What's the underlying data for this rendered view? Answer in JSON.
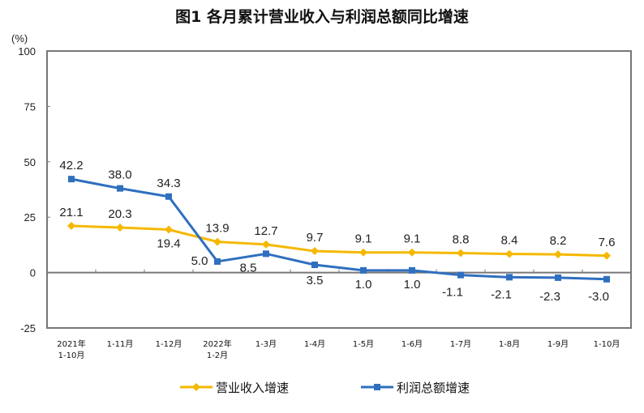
{
  "chart_data": {
    "type": "line",
    "title": "图1  各月累计营业收入与利润总额同比增速",
    "ylabel": "(%)",
    "ylim": [
      -25,
      100
    ],
    "yticks": [
      "100",
      "75",
      "50",
      "25",
      "0",
      "-25"
    ],
    "grid": false,
    "legend_position": "bottom",
    "categories": [
      [
        "2021年",
        "1-10月"
      ],
      [
        "1-11月"
      ],
      [
        "1-12月"
      ],
      [
        "2022年",
        "1-2月"
      ],
      [
        "1-3月"
      ],
      [
        "1-4月"
      ],
      [
        "1-5月"
      ],
      [
        "1-6月"
      ],
      [
        "1-7月"
      ],
      [
        "1-8月"
      ],
      [
        "1-9月"
      ],
      [
        "1-10月"
      ]
    ],
    "series": [
      {
        "name": "营业收入增速",
        "color": "#F5B800",
        "marker": "diamond",
        "values": [
          21.1,
          20.3,
          19.4,
          13.9,
          12.7,
          9.7,
          9.1,
          9.1,
          8.8,
          8.4,
          8.2,
          7.6
        ]
      },
      {
        "name": "利润总额增速",
        "color": "#2F6FBF",
        "marker": "square",
        "values": [
          42.2,
          38.0,
          34.3,
          5.0,
          8.5,
          3.5,
          1.0,
          1.0,
          -1.1,
          -2.1,
          -2.3,
          -3.0
        ]
      }
    ]
  }
}
